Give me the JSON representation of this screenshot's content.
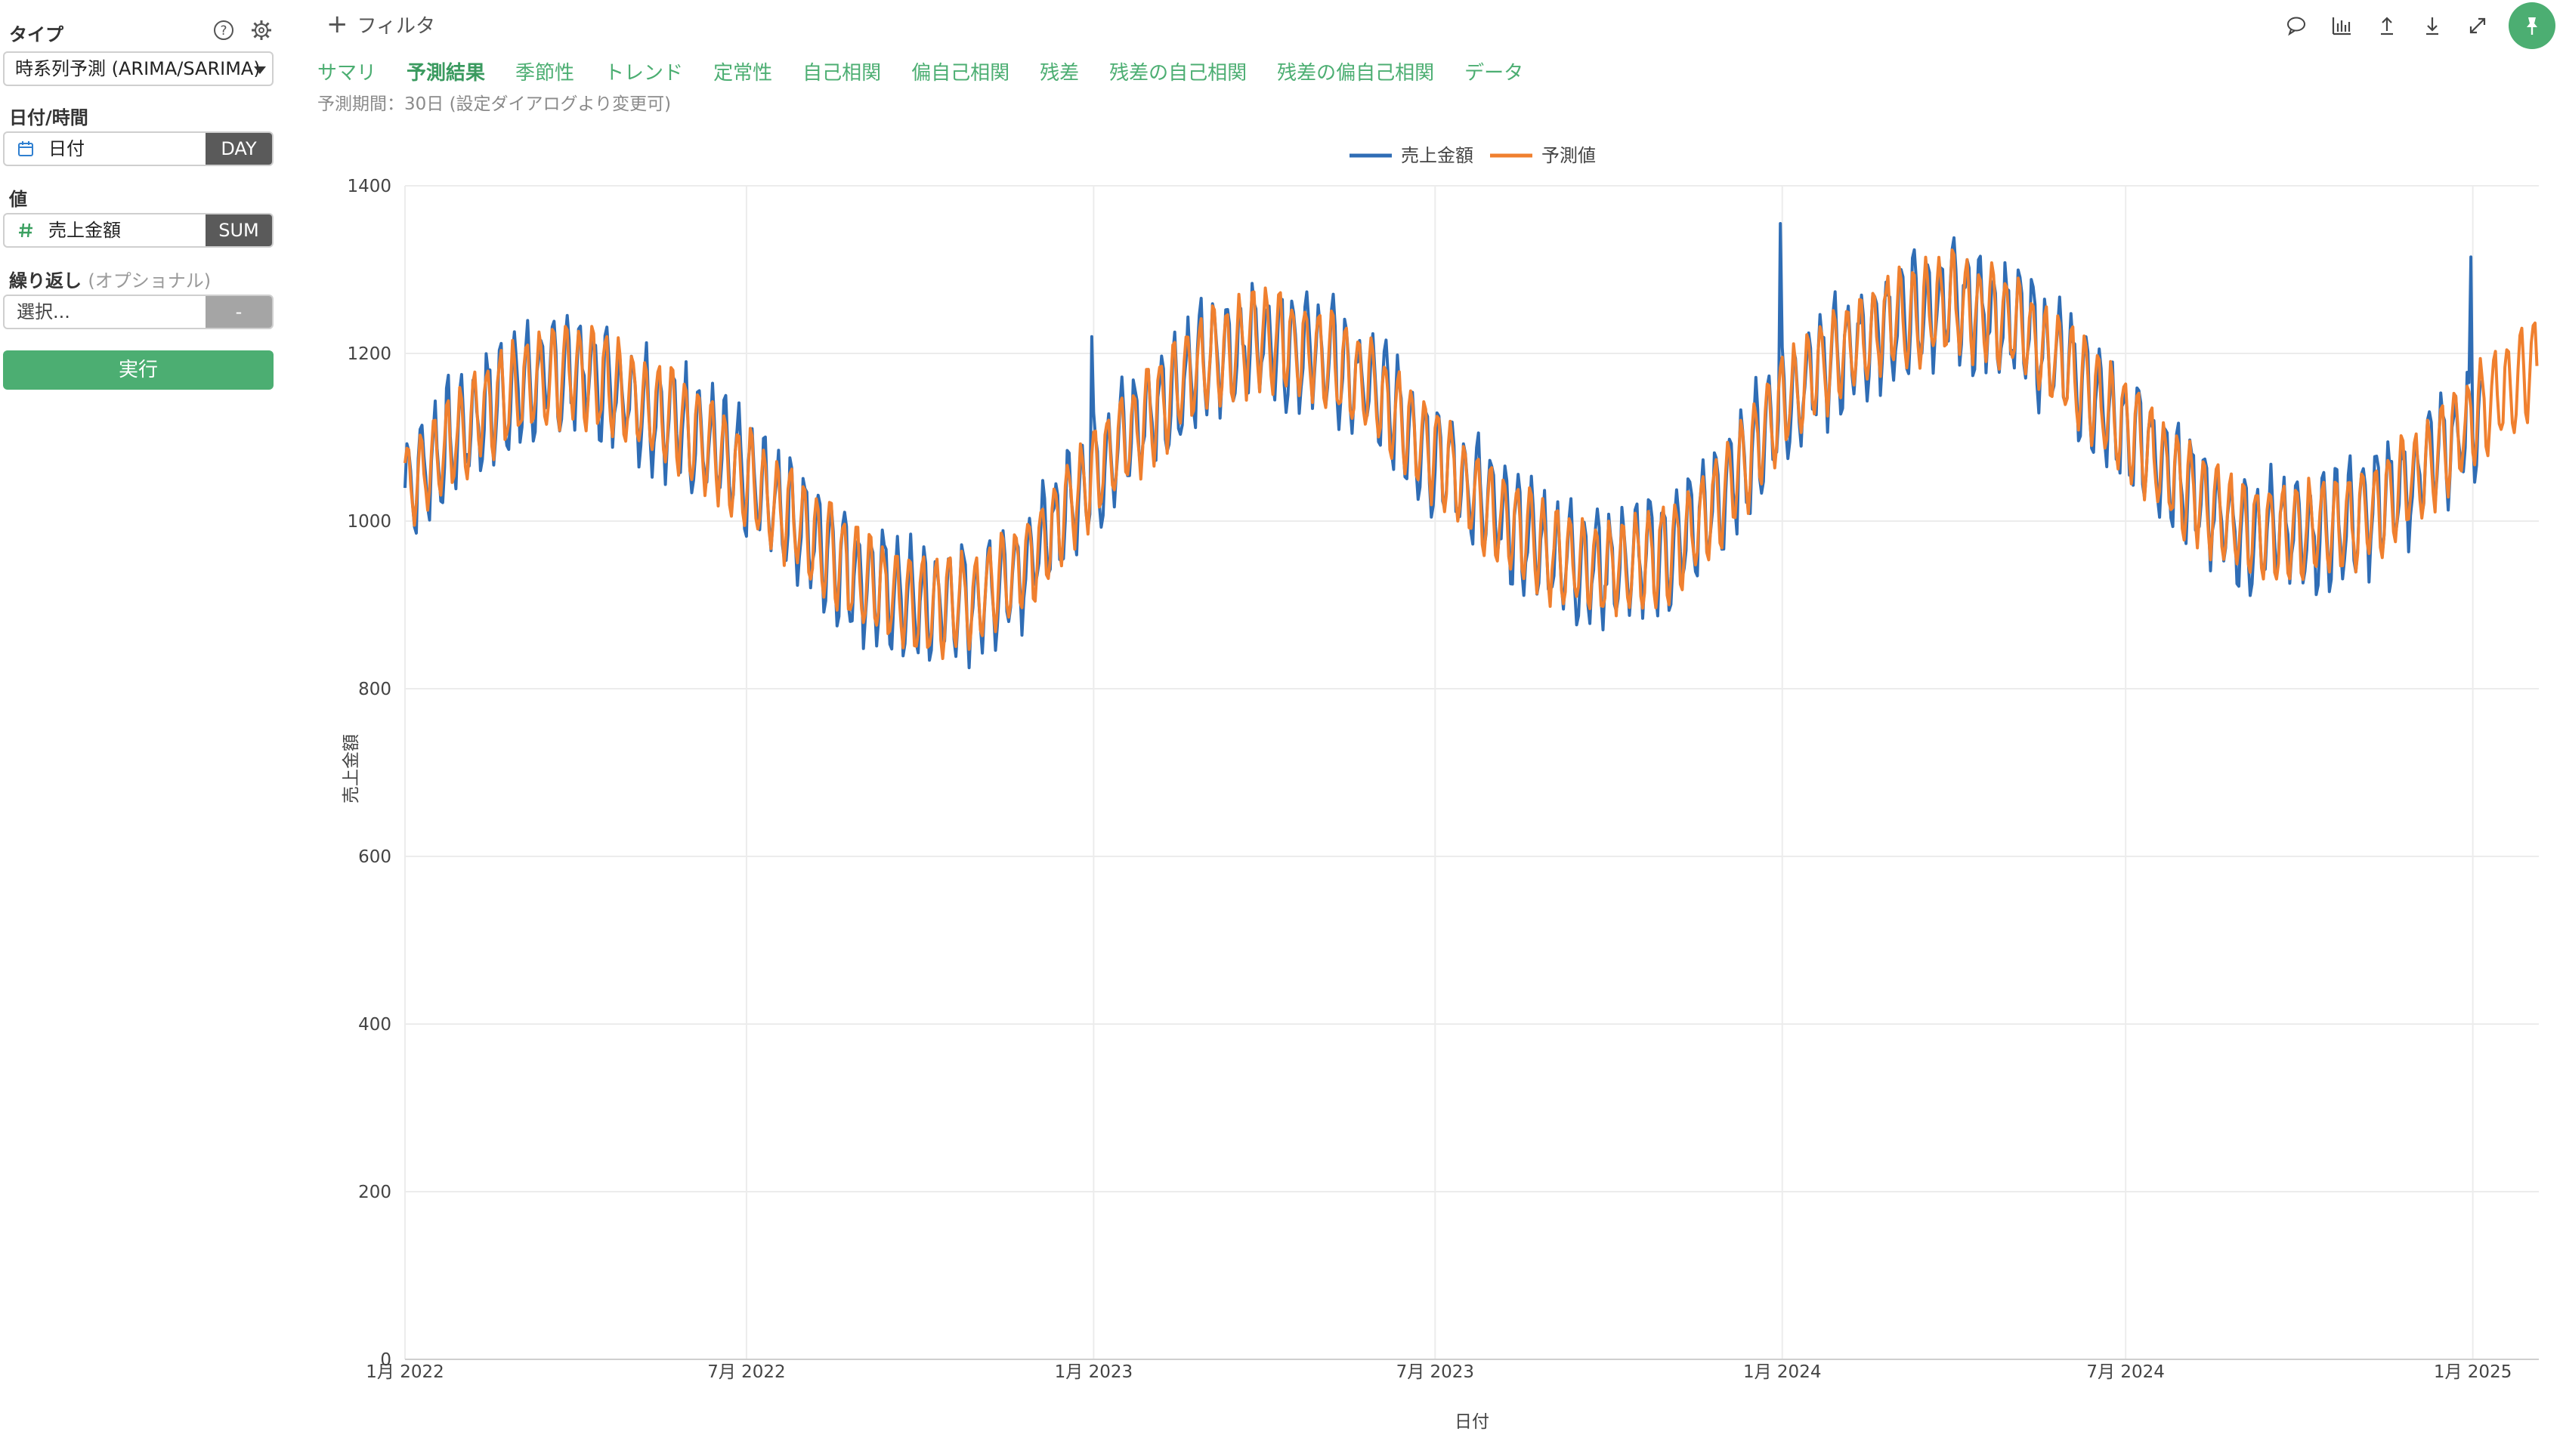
{
  "sidebar": {
    "type_label": "タイプ",
    "type_value": "時系列予測 (ARIMA/SARIMA)",
    "date_label": "日付/時間",
    "date_field": "日付",
    "date_unit": "DAY",
    "value_label": "値",
    "value_field": "売上金額",
    "value_agg": "SUM",
    "repeat_label": "繰り返し",
    "repeat_optional": "(オプショナル)",
    "repeat_placeholder": "選択...",
    "repeat_agg": "-",
    "run_label": "実行"
  },
  "topbar": {
    "filter_label": "フィルタ"
  },
  "tabs": [
    {
      "label": "サマリ",
      "active": false
    },
    {
      "label": "予測結果",
      "active": true
    },
    {
      "label": "季節性",
      "active": false
    },
    {
      "label": "トレンド",
      "active": false
    },
    {
      "label": "定常性",
      "active": false
    },
    {
      "label": "自己相関",
      "active": false
    },
    {
      "label": "偏自己相関",
      "active": false
    },
    {
      "label": "残差",
      "active": false
    },
    {
      "label": "残差の自己相関",
      "active": false
    },
    {
      "label": "残差の偏自己相関",
      "active": false
    },
    {
      "label": "データ",
      "active": false
    }
  ],
  "forecast_note": "予測期間：30日 (設定ダイアログより変更可)",
  "colors": {
    "accent": "#4cae72",
    "actual": "#2f6db5",
    "forecast": "#f0802f"
  },
  "chart_data": {
    "type": "line",
    "xlabel": "日付",
    "ylabel": "売上金額",
    "ylim": [
      0,
      1400
    ],
    "yticks": [
      0,
      200,
      400,
      600,
      800,
      1000,
      1200,
      1400
    ],
    "xlim": [
      "2022-01-01",
      "2025-02-05"
    ],
    "xticks": [
      {
        "date": "2022-01-01",
        "label": "1月 2022"
      },
      {
        "date": "2022-07-01",
        "label": "7月 2022"
      },
      {
        "date": "2023-01-01",
        "label": "1月 2023"
      },
      {
        "date": "2023-07-01",
        "label": "7月 2023"
      },
      {
        "date": "2024-01-01",
        "label": "1月 2024"
      },
      {
        "date": "2024-07-01",
        "label": "7月 2024"
      },
      {
        "date": "2025-01-01",
        "label": "1月 2025"
      }
    ],
    "grid": true,
    "legend_position": "top-center",
    "series": [
      {
        "name": "売上金額",
        "color": "#2f6db5",
        "x": [
          "2022-01-01",
          "2022-02-01",
          "2022-03-01",
          "2022-04-01",
          "2022-05-01",
          "2022-06-01",
          "2022-07-01",
          "2022-08-01",
          "2022-09-01",
          "2022-10-01",
          "2022-11-01",
          "2022-12-01",
          "2023-01-01",
          "2023-02-01",
          "2023-03-01",
          "2023-04-01",
          "2023-05-01",
          "2023-06-01",
          "2023-07-01",
          "2023-08-01",
          "2023-09-01",
          "2023-10-01",
          "2023-11-01",
          "2023-12-01",
          "2024-01-01",
          "2024-02-01",
          "2024-03-01",
          "2024-04-01",
          "2024-05-01",
          "2024-06-01",
          "2024-07-01",
          "2024-08-01",
          "2024-09-01",
          "2024-10-01",
          "2024-11-01",
          "2024-12-01",
          "2025-01-05"
        ],
        "y": [
          1040,
          1110,
          1160,
          1180,
          1150,
          1110,
          1050,
          990,
          930,
          900,
          905,
          960,
          1060,
          1130,
          1190,
          1220,
          1200,
          1150,
          1080,
          1010,
          960,
          945,
          960,
          1030,
          1140,
          1200,
          1240,
          1260,
          1240,
          1180,
          1110,
          1040,
          990,
          985,
          1000,
          1050,
          1130
        ],
        "amplitude": 60,
        "spikes": [
          {
            "date": "2022-12-31",
            "value": 1220
          },
          {
            "date": "2023-12-31",
            "value": 1355
          },
          {
            "date": "2024-12-31",
            "value": 1315
          }
        ]
      },
      {
        "name": "予測値",
        "color": "#f0802f",
        "x": [
          "2022-01-01",
          "2022-02-01",
          "2022-03-01",
          "2022-04-01",
          "2022-05-01",
          "2022-06-01",
          "2022-07-01",
          "2022-08-01",
          "2022-09-01",
          "2022-10-01",
          "2022-11-01",
          "2022-12-01",
          "2023-01-01",
          "2023-02-01",
          "2023-03-01",
          "2023-04-01",
          "2023-05-01",
          "2023-06-01",
          "2023-07-01",
          "2023-08-01",
          "2023-09-01",
          "2023-10-01",
          "2023-11-01",
          "2023-12-01",
          "2024-01-01",
          "2024-02-01",
          "2024-03-01",
          "2024-04-01",
          "2024-05-01",
          "2024-06-01",
          "2024-07-01",
          "2024-08-01",
          "2024-09-01",
          "2024-10-01",
          "2024-11-01",
          "2024-12-01",
          "2025-01-05",
          "2025-02-04"
        ],
        "y": [
          1040,
          1110,
          1160,
          1180,
          1150,
          1110,
          1050,
          990,
          930,
          900,
          905,
          960,
          1060,
          1130,
          1190,
          1220,
          1200,
          1150,
          1080,
          1010,
          960,
          945,
          960,
          1030,
          1140,
          1200,
          1240,
          1260,
          1240,
          1180,
          1110,
          1040,
          990,
          985,
          1000,
          1050,
          1130,
          1190
        ],
        "amplitude": 55
      }
    ]
  }
}
